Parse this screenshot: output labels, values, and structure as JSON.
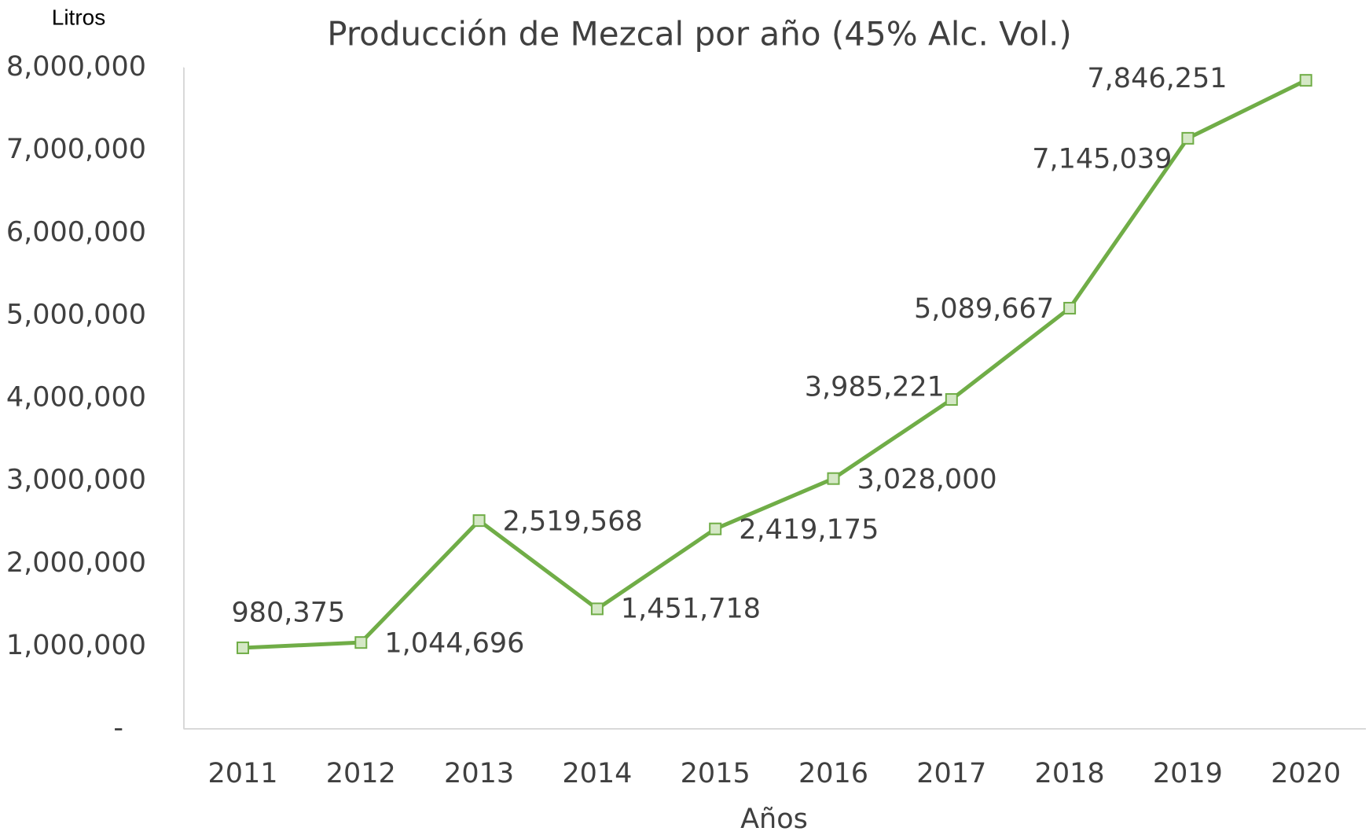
{
  "chart_data": {
    "type": "line",
    "title": "Producción de Mezcal por año (45% Alc. Vol.)",
    "y_label": "Litros",
    "x_label": "Años",
    "categories": [
      "2011",
      "2012",
      "2013",
      "2014",
      "2015",
      "2016",
      "2017",
      "2018",
      "2019",
      "2020"
    ],
    "series": [
      {
        "name": "Producción",
        "color": "#70ad47",
        "values": [
          980375,
          1044696,
          2519568,
          1451718,
          2419175,
          3028000,
          3985221,
          5089667,
          7145039,
          7846251
        ],
        "value_labels": [
          "980,375",
          "1,044,696",
          "2,519,568",
          "1,451,718",
          "2,419,175",
          "3,028,000",
          "3,985,221",
          "5,089,667",
          "7,145,039",
          "7,846,251"
        ]
      }
    ],
    "ylim": [
      0,
      8000000
    ],
    "yticks": [
      {
        "value": 0,
        "label": "-"
      },
      {
        "value": 1000000,
        "label": "1,000,000"
      },
      {
        "value": 2000000,
        "label": "2,000,000"
      },
      {
        "value": 3000000,
        "label": "3,000,000"
      },
      {
        "value": 4000000,
        "label": "4,000,000"
      },
      {
        "value": 5000000,
        "label": "5,000,000"
      },
      {
        "value": 6000000,
        "label": "6,000,000"
      },
      {
        "value": 7000000,
        "label": "7,000,000"
      },
      {
        "value": 8000000,
        "label": "8,000,000"
      }
    ]
  }
}
